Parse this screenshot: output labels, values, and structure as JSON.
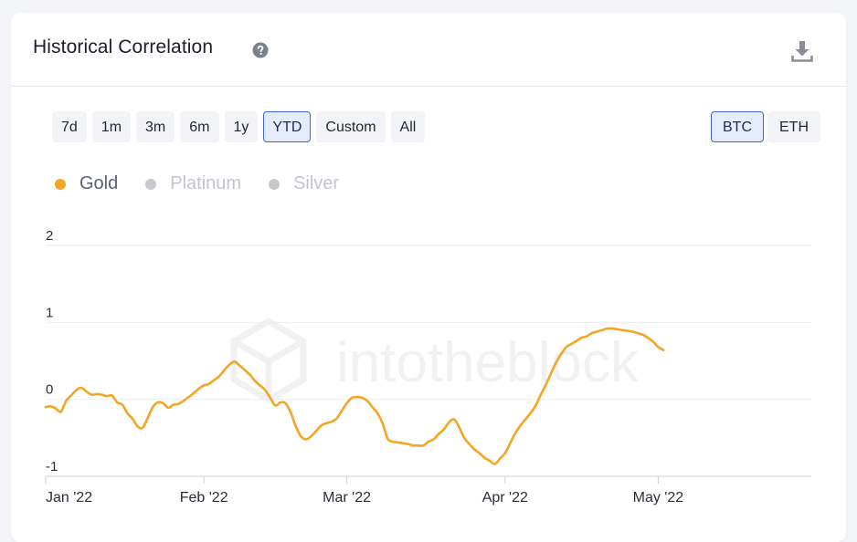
{
  "card": {
    "title": "Historical Correlation",
    "help_icon": "question-circle-icon",
    "download_icon": "download-icon"
  },
  "range_buttons": [
    {
      "label": "7d",
      "active": false
    },
    {
      "label": "1m",
      "active": false
    },
    {
      "label": "3m",
      "active": false
    },
    {
      "label": "6m",
      "active": false
    },
    {
      "label": "1y",
      "active": false
    },
    {
      "label": "YTD",
      "active": true
    },
    {
      "label": "Custom",
      "active": false
    },
    {
      "label": "All",
      "active": false
    }
  ],
  "asset_buttons": [
    {
      "label": "BTC",
      "active": true
    },
    {
      "label": "ETH",
      "active": false
    }
  ],
  "legend": [
    {
      "label": "Gold",
      "color": "#f2a623",
      "enabled": true
    },
    {
      "label": "Platinum",
      "color": "#c8c8cc",
      "enabled": false
    },
    {
      "label": "Silver",
      "color": "#c8c8cc",
      "enabled": false
    }
  ],
  "watermark": "intotheblock",
  "colors": {
    "line": "#f2a623",
    "grid": "#eceef2",
    "axis_text": "#2a2e3a",
    "legend_on": "#5b6278",
    "legend_off": "#c3c5cc",
    "active_border": "#3d64d8"
  },
  "chart_data": {
    "type": "line",
    "title": "Historical Correlation",
    "ylim": [
      -1,
      2
    ],
    "y_ticks": [
      2,
      1,
      0,
      -1
    ],
    "x_range": [
      "2022-01-01",
      "2022-05-31"
    ],
    "x_ticks": [
      {
        "label": "Jan '22",
        "date": "2022-01-01"
      },
      {
        "label": "Feb '22",
        "date": "2022-02-01"
      },
      {
        "label": "Mar '22",
        "date": "2022-03-01"
      },
      {
        "label": "Apr '22",
        "date": "2022-04-01"
      },
      {
        "label": "May '22",
        "date": "2022-05-01"
      }
    ],
    "grid": true,
    "legend_position": "top-left",
    "series": [
      {
        "name": "Gold",
        "color": "#f2a623",
        "points": [
          [
            "2022-01-01",
            -0.1
          ],
          [
            "2022-01-02",
            -0.09
          ],
          [
            "2022-01-03",
            -0.12
          ],
          [
            "2022-01-04",
            -0.16
          ],
          [
            "2022-01-05",
            -0.02
          ],
          [
            "2022-01-06",
            0.05
          ],
          [
            "2022-01-07",
            0.12
          ],
          [
            "2022-01-08",
            0.15
          ],
          [
            "2022-01-09",
            0.1
          ],
          [
            "2022-01-10",
            0.06
          ],
          [
            "2022-01-11",
            0.07
          ],
          [
            "2022-01-12",
            0.06
          ],
          [
            "2022-01-13",
            0.04
          ],
          [
            "2022-01-14",
            0.05
          ],
          [
            "2022-01-15",
            -0.04
          ],
          [
            "2022-01-16",
            -0.07
          ],
          [
            "2022-01-17",
            -0.18
          ],
          [
            "2022-01-18",
            -0.25
          ],
          [
            "2022-01-19",
            -0.35
          ],
          [
            "2022-01-20",
            -0.37
          ],
          [
            "2022-01-21",
            -0.24
          ],
          [
            "2022-01-22",
            -0.1
          ],
          [
            "2022-01-23",
            -0.04
          ],
          [
            "2022-01-24",
            -0.05
          ],
          [
            "2022-01-25",
            -0.11
          ],
          [
            "2022-01-26",
            -0.07
          ],
          [
            "2022-01-27",
            -0.06
          ],
          [
            "2022-01-28",
            -0.02
          ],
          [
            "2022-01-29",
            0.03
          ],
          [
            "2022-01-30",
            0.08
          ],
          [
            "2022-01-31",
            0.14
          ],
          [
            "2022-02-01",
            0.18
          ],
          [
            "2022-02-02",
            0.2
          ],
          [
            "2022-02-03",
            0.25
          ],
          [
            "2022-02-04",
            0.3
          ],
          [
            "2022-02-05",
            0.38
          ],
          [
            "2022-02-06",
            0.45
          ],
          [
            "2022-02-07",
            0.49
          ],
          [
            "2022-02-08",
            0.44
          ],
          [
            "2022-02-09",
            0.38
          ],
          [
            "2022-02-10",
            0.32
          ],
          [
            "2022-02-11",
            0.24
          ],
          [
            "2022-02-12",
            0.18
          ],
          [
            "2022-02-13",
            0.12
          ],
          [
            "2022-02-14",
            0.02
          ],
          [
            "2022-02-15",
            -0.08
          ],
          [
            "2022-02-16",
            -0.04
          ],
          [
            "2022-02-17",
            -0.05
          ],
          [
            "2022-02-18",
            -0.17
          ],
          [
            "2022-02-19",
            -0.35
          ],
          [
            "2022-02-20",
            -0.48
          ],
          [
            "2022-02-21",
            -0.52
          ],
          [
            "2022-02-22",
            -0.48
          ],
          [
            "2022-02-23",
            -0.41
          ],
          [
            "2022-02-24",
            -0.34
          ],
          [
            "2022-02-25",
            -0.31
          ],
          [
            "2022-02-26",
            -0.29
          ],
          [
            "2022-02-27",
            -0.25
          ],
          [
            "2022-02-28",
            -0.15
          ],
          [
            "2022-03-01",
            -0.05
          ],
          [
            "2022-03-02",
            0.02
          ],
          [
            "2022-03-03",
            0.03
          ],
          [
            "2022-03-04",
            0.02
          ],
          [
            "2022-03-05",
            -0.02
          ],
          [
            "2022-03-06",
            -0.1
          ],
          [
            "2022-03-07",
            -0.18
          ],
          [
            "2022-03-08",
            -0.31
          ],
          [
            "2022-03-09",
            -0.51
          ],
          [
            "2022-03-10",
            -0.55
          ],
          [
            "2022-03-11",
            -0.56
          ],
          [
            "2022-03-12",
            -0.57
          ],
          [
            "2022-03-13",
            -0.58
          ],
          [
            "2022-03-14",
            -0.6
          ],
          [
            "2022-03-15",
            -0.6
          ],
          [
            "2022-03-16",
            -0.6
          ],
          [
            "2022-03-17",
            -0.55
          ],
          [
            "2022-03-18",
            -0.52
          ],
          [
            "2022-03-19",
            -0.45
          ],
          [
            "2022-03-20",
            -0.39
          ],
          [
            "2022-03-21",
            -0.3
          ],
          [
            "2022-03-22",
            -0.26
          ],
          [
            "2022-03-23",
            -0.36
          ],
          [
            "2022-03-24",
            -0.5
          ],
          [
            "2022-03-25",
            -0.58
          ],
          [
            "2022-03-26",
            -0.65
          ],
          [
            "2022-03-27",
            -0.7
          ],
          [
            "2022-03-28",
            -0.76
          ],
          [
            "2022-03-29",
            -0.8
          ],
          [
            "2022-03-30",
            -0.84
          ],
          [
            "2022-03-31",
            -0.77
          ],
          [
            "2022-04-01",
            -0.7
          ],
          [
            "2022-04-02",
            -0.57
          ],
          [
            "2022-04-03",
            -0.44
          ],
          [
            "2022-04-04",
            -0.34
          ],
          [
            "2022-04-05",
            -0.26
          ],
          [
            "2022-04-06",
            -0.18
          ],
          [
            "2022-04-07",
            -0.08
          ],
          [
            "2022-04-08",
            0.06
          ],
          [
            "2022-04-09",
            0.19
          ],
          [
            "2022-04-10",
            0.34
          ],
          [
            "2022-04-11",
            0.48
          ],
          [
            "2022-04-12",
            0.59
          ],
          [
            "2022-04-13",
            0.68
          ],
          [
            "2022-04-14",
            0.72
          ],
          [
            "2022-04-15",
            0.76
          ],
          [
            "2022-04-16",
            0.8
          ],
          [
            "2022-04-17",
            0.82
          ],
          [
            "2022-04-18",
            0.86
          ],
          [
            "2022-04-19",
            0.88
          ],
          [
            "2022-04-20",
            0.9
          ],
          [
            "2022-04-21",
            0.92
          ],
          [
            "2022-04-22",
            0.92
          ],
          [
            "2022-04-23",
            0.91
          ],
          [
            "2022-04-24",
            0.9
          ],
          [
            "2022-04-25",
            0.89
          ],
          [
            "2022-04-26",
            0.88
          ],
          [
            "2022-04-27",
            0.86
          ],
          [
            "2022-04-28",
            0.84
          ],
          [
            "2022-04-29",
            0.8
          ],
          [
            "2022-04-30",
            0.75
          ],
          [
            "2022-05-01",
            0.68
          ],
          [
            "2022-05-02",
            0.64
          ]
        ]
      }
    ]
  }
}
